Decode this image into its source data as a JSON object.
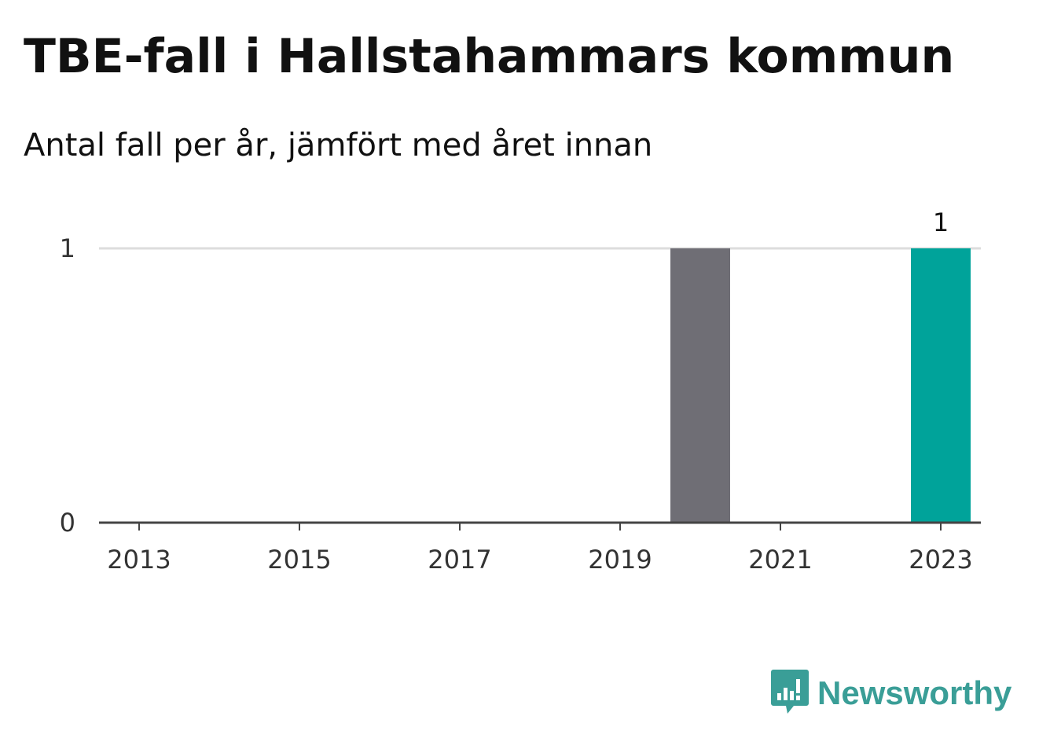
{
  "title": "TBE-fall i Hallstahammars kommun",
  "subtitle": "Antal fall per år, jämfört med året innan",
  "brand": {
    "name": "Newsworthy",
    "color": "#3a9e97",
    "logo_icon": "bar-chart-speech-bubble-icon"
  },
  "chart_data": {
    "type": "bar",
    "title": "TBE-fall i Hallstahammars kommun",
    "subtitle": "Antal fall per år, jämfört med året innan",
    "xlabel": "",
    "ylabel": "",
    "x": [
      2013,
      2014,
      2015,
      2016,
      2017,
      2018,
      2019,
      2020,
      2021,
      2022,
      2023
    ],
    "values": [
      0,
      0,
      0,
      0,
      0,
      0,
      0,
      1,
      0,
      0,
      1
    ],
    "highlight": 2023,
    "xticks": [
      "2013",
      "2015",
      "2017",
      "2019",
      "2021",
      "2023"
    ],
    "yticks": [
      0,
      1
    ],
    "ylim": [
      0,
      1
    ],
    "grid": true,
    "data_labels": [
      {
        "x": 2023,
        "text": "1"
      }
    ],
    "colors": {
      "previous": "#6f6e75",
      "current": "#00a39a",
      "grid": "#dddddd",
      "axis": "#444444"
    }
  }
}
